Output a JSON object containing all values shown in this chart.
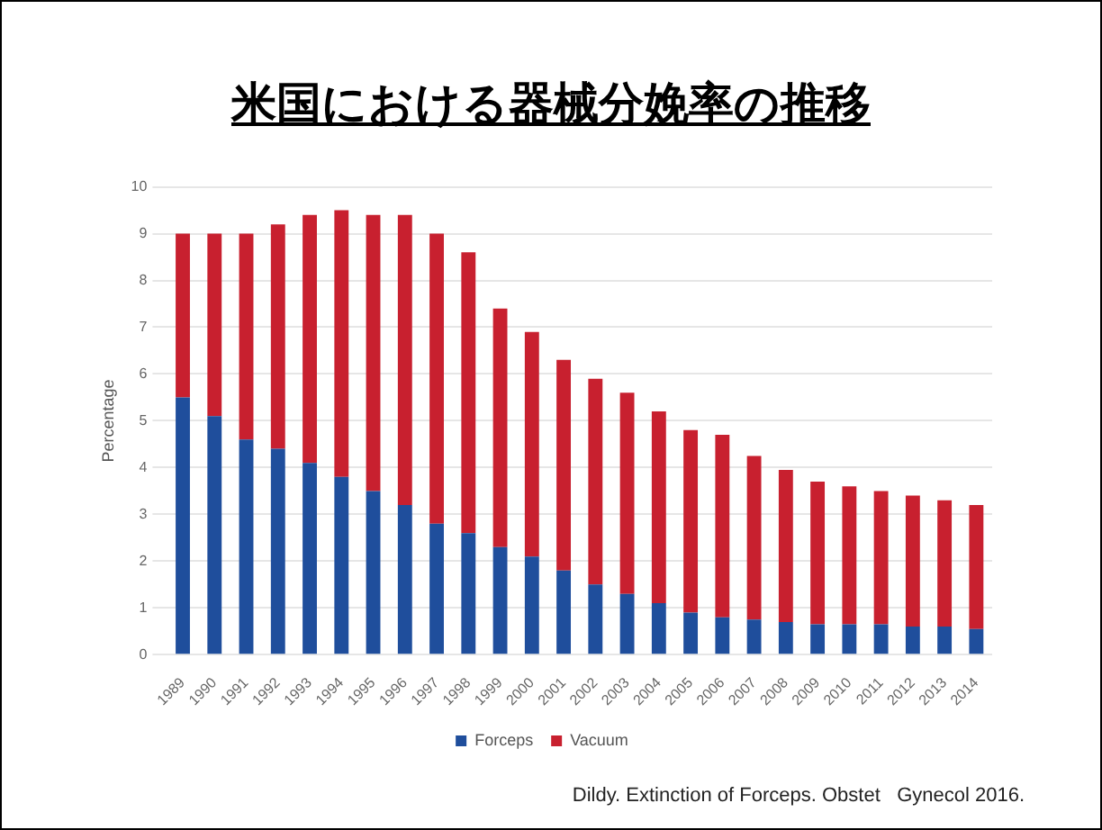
{
  "chart_data": {
    "type": "bar",
    "title": "米国における器械分娩率の推移",
    "ylabel": "Percentage",
    "stacked": true,
    "grid": "y",
    "legend": "bottom",
    "categories": [
      "1989",
      "1990",
      "1991",
      "1992",
      "1993",
      "1994",
      "1995",
      "1996",
      "1997",
      "1998",
      "1999",
      "2000",
      "2001",
      "2002",
      "2003",
      "2004",
      "2005",
      "2006",
      "2007",
      "2008",
      "2009",
      "2010",
      "2011",
      "2012",
      "2013",
      "2014"
    ],
    "series": [
      {
        "name": "Forceps",
        "color": "#1f4e9c",
        "values": [
          5.5,
          5.1,
          4.6,
          4.4,
          4.1,
          3.8,
          3.5,
          3.2,
          2.8,
          2.6,
          2.3,
          2.1,
          1.8,
          1.5,
          1.3,
          1.1,
          0.9,
          0.8,
          0.75,
          0.7,
          0.65,
          0.65,
          0.65,
          0.6,
          0.6,
          0.55
        ]
      },
      {
        "name": "Vacuum",
        "color": "#c8202f",
        "values": [
          3.5,
          3.9,
          4.4,
          4.8,
          5.3,
          5.7,
          5.9,
          6.2,
          6.2,
          6.0,
          5.1,
          4.8,
          4.5,
          4.4,
          4.3,
          4.1,
          3.9,
          3.9,
          3.5,
          3.25,
          3.05,
          2.95,
          2.85,
          2.8,
          2.7,
          2.65
        ]
      }
    ],
    "ylim": [
      0,
      10
    ],
    "yticks": [
      0,
      1,
      2,
      3,
      4,
      5,
      6,
      7,
      8,
      9,
      10
    ],
    "annotations": [
      "Dildy. Extinction of Forceps. Obstet   Gynecol 2016."
    ]
  }
}
